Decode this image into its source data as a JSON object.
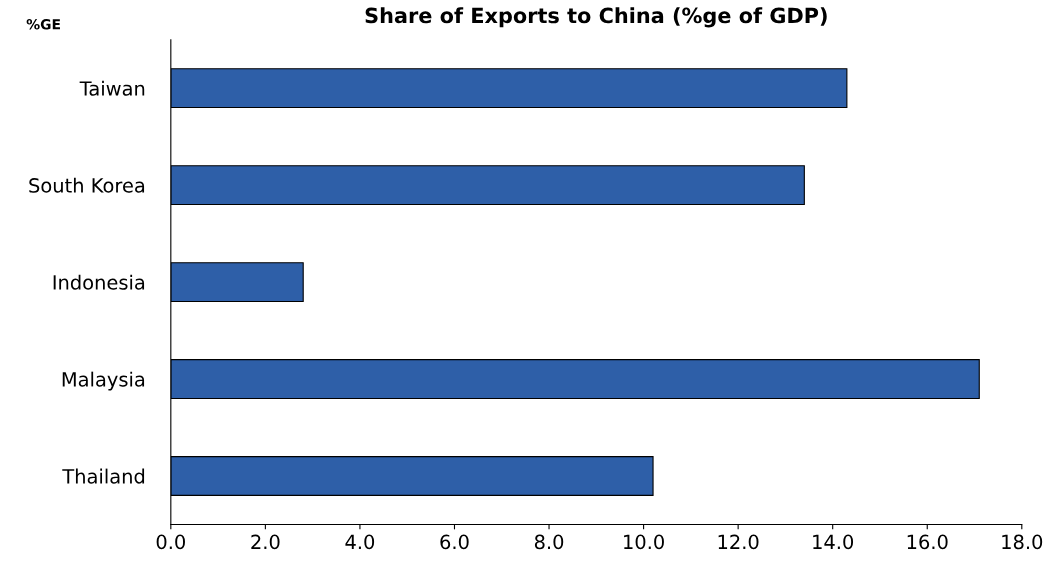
{
  "chart_data": {
    "type": "bar",
    "orientation": "horizontal",
    "title": "Share of Exports to China (%ge of GDP)",
    "ylabel": "%GE",
    "categories": [
      "Taiwan",
      "South Korea",
      "Indonesia",
      "Malaysia",
      "Thailand"
    ],
    "values": [
      14.3,
      13.4,
      2.8,
      17.1,
      10.2
    ],
    "color": "#2e5fa8",
    "xlim": [
      0,
      18
    ],
    "xticks": [
      {
        "value": 0,
        "label": "0.0"
      },
      {
        "value": 2,
        "label": "2.0"
      },
      {
        "value": 4,
        "label": "4.0"
      },
      {
        "value": 6,
        "label": "6.0"
      },
      {
        "value": 8,
        "label": "8.0"
      },
      {
        "value": 10,
        "label": "10.0"
      },
      {
        "value": 12,
        "label": "12.0"
      },
      {
        "value": 14,
        "label": "14.0"
      },
      {
        "value": 16,
        "label": "16.0"
      },
      {
        "value": 18,
        "label": "18.0"
      }
    ],
    "grid": false,
    "legend": false
  }
}
